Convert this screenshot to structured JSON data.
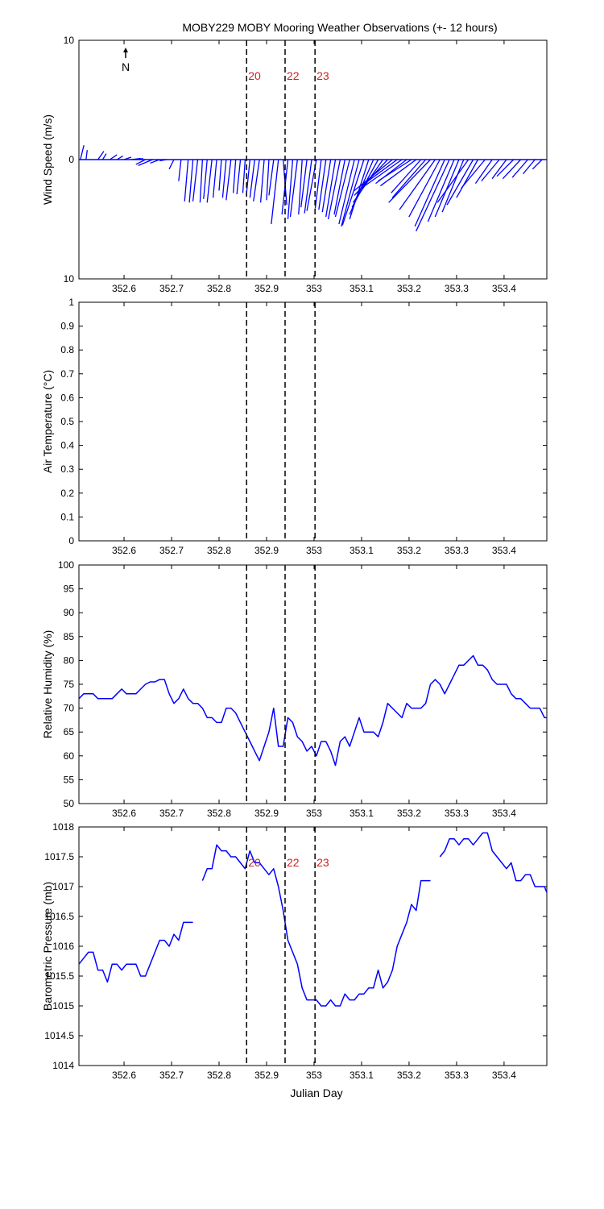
{
  "title": "MOBY229 MOBY Mooring Weather Observations (+- 12 hours)",
  "xlabel": "Julian Day",
  "north_label": "N",
  "colors": {
    "series": "#0000ff",
    "marker_text": "#cc2222",
    "axes": "#000000"
  },
  "markers": [
    {
      "x": 352.858,
      "label": "20"
    },
    {
      "x": 352.939,
      "label": "22"
    },
    {
      "x": 353.002,
      "label": "23"
    }
  ],
  "chart_data": [
    {
      "type": "wind-vector",
      "ylabel": "Wind Speed (m/s)",
      "xlim": [
        352.505,
        353.49
      ],
      "ylim": [
        -10,
        10
      ],
      "x_ticks": [
        352.6,
        352.7,
        352.8,
        352.9,
        353,
        353.1,
        353.2,
        353.3,
        353.4
      ],
      "x_tick_labels": [
        "352.6",
        "352.7",
        "352.8",
        "352.9",
        "353",
        "353.1",
        "353.2",
        "353.3",
        "353.4"
      ],
      "y_ticks": [
        10,
        0,
        -10
      ],
      "y_tick_labels": [
        "10",
        "0",
        "10"
      ],
      "grid": false,
      "show_markers": true,
      "show_marker_labels": true,
      "series": [
        {
          "name": "wind",
          "x": [
            352.508,
            352.52,
            352.545,
            352.555,
            352.57,
            352.585,
            352.6,
            352.615,
            352.63,
            352.645,
            352.66,
            352.675,
            352.69,
            352.705,
            352.72,
            352.735,
            352.745,
            352.755,
            352.765,
            352.775,
            352.785,
            352.795,
            352.805,
            352.815,
            352.825,
            352.835,
            352.845,
            352.855,
            352.865,
            352.875,
            352.885,
            352.895,
            352.905,
            352.915,
            352.925,
            352.935,
            352.945,
            352.955,
            352.965,
            352.975,
            352.985,
            352.995,
            353.005,
            353.015,
            353.025,
            353.035,
            353.045,
            353.055,
            353.065,
            353.075,
            353.085,
            353.095,
            353.105,
            353.115,
            353.125,
            353.135,
            353.145,
            353.155,
            353.165,
            353.175,
            353.185,
            353.195,
            353.205,
            353.215,
            353.225,
            353.235,
            353.245,
            353.255,
            353.265,
            353.275,
            353.285,
            353.295,
            353.305,
            353.315,
            353.325,
            353.335,
            353.345,
            353.36,
            353.375,
            353.39,
            353.405,
            353.42,
            353.435,
            353.45,
            353.465,
            353.48
          ],
          "u": [
            0.3,
            0.1,
            0.5,
            0.3,
            0.6,
            0.5,
            0.6,
            0.8,
            0.4,
            -0.8,
            -1.2,
            -0.8,
            -0.6,
            -0.4,
            -0.2,
            -0.3,
            -0.3,
            -0.4,
            -0.2,
            -0.3,
            -0.4,
            -0.3,
            -0.2,
            -0.3,
            -0.4,
            -0.2,
            -0.3,
            -0.2,
            -0.3,
            -0.4,
            -0.5,
            -0.3,
            -0.2,
            -0.4,
            -0.6,
            0.3,
            -0.5,
            -0.4,
            -0.6,
            -0.3,
            -0.5,
            -0.6,
            -0.8,
            -0.5,
            -0.6,
            -0.7,
            -0.8,
            -1.0,
            -0.9,
            -1.2,
            -1.3,
            -1.5,
            -1.8,
            -1.6,
            -2.0,
            -2.2,
            -2.5,
            -2.8,
            -3.2,
            -3.0,
            -3.4,
            -2.6,
            -2.8,
            -3.0,
            -2.5,
            -2.8,
            -3.5,
            -3.0,
            -2.6,
            -2.5,
            -2.8,
            -2.2,
            -2.0,
            -1.8,
            -2.6,
            -2.2,
            -1.8,
            -2.0,
            -1.4,
            -1.5,
            -1.2,
            -1.4,
            -1.5,
            -1.3,
            -1.0,
            -0.8
          ],
          "v": [
            1.2,
            0.8,
            0.7,
            0.5,
            0.4,
            0.3,
            0.2,
            0.1,
            0.1,
            -0.4,
            -0.5,
            -0.3,
            -0.1,
            -0.8,
            -1.8,
            -3.5,
            -3.6,
            -3.5,
            -3.6,
            -3.3,
            -3.6,
            -3.2,
            -2.6,
            -3.2,
            -3.4,
            -2.8,
            -2.9,
            -2.8,
            -3.0,
            -3.2,
            -3.5,
            -3.6,
            -3.4,
            -3.0,
            -5.4,
            -3.8,
            -4.6,
            -5.0,
            -4.8,
            -4.6,
            -4.0,
            -4.5,
            -4.3,
            -4.1,
            -4.2,
            -4.4,
            -4.8,
            -5.0,
            -4.6,
            -4.8,
            -5.4,
            -5.6,
            -5.5,
            -5.0,
            -4.6,
            -4.0,
            -3.6,
            -3.0,
            -2.6,
            -2.2,
            -2.4,
            -2.0,
            -1.8,
            -2.2,
            -2.8,
            -3.2,
            -3.6,
            -4.2,
            -4.8,
            -5.6,
            -6.0,
            -5.2,
            -4.8,
            -4.4,
            -3.6,
            -3.8,
            -3.2,
            -2.4,
            -2.0,
            -1.8,
            -1.6,
            -1.4,
            -1.6,
            -1.5,
            -1.2,
            -0.8
          ]
        }
      ]
    },
    {
      "type": "line",
      "ylabel": "Air Temperature (°C)",
      "xlim": [
        352.505,
        353.49
      ],
      "ylim": [
        0,
        1
      ],
      "x_ticks": [
        352.6,
        352.7,
        352.8,
        352.9,
        353,
        353.1,
        353.2,
        353.3,
        353.4
      ],
      "x_tick_labels": [
        "352.6",
        "352.7",
        "352.8",
        "352.9",
        "353",
        "353.1",
        "353.2",
        "353.3",
        "353.4"
      ],
      "y_ticks": [
        0,
        0.1,
        0.2,
        0.3,
        0.4,
        0.5,
        0.6,
        0.7,
        0.8,
        0.9,
        1
      ],
      "y_tick_labels": [
        "0",
        "0.1",
        "0.2",
        "0.3",
        "0.4",
        "0.5",
        "0.6",
        "0.7",
        "0.8",
        "0.9",
        "1"
      ],
      "grid": false,
      "show_markers": true,
      "show_marker_labels": false,
      "series": []
    },
    {
      "type": "line",
      "ylabel": "Relative Humidity (%)",
      "xlim": [
        352.505,
        353.49
      ],
      "ylim": [
        50,
        100
      ],
      "x_ticks": [
        352.6,
        352.7,
        352.8,
        352.9,
        353,
        353.1,
        353.2,
        353.3,
        353.4
      ],
      "x_tick_labels": [
        "352.6",
        "352.7",
        "352.8",
        "352.9",
        "353",
        "353.1",
        "353.2",
        "353.3",
        "353.4"
      ],
      "y_ticks": [
        50,
        55,
        60,
        65,
        70,
        75,
        80,
        85,
        90,
        95,
        100
      ],
      "y_tick_labels": [
        "50",
        "55",
        "60",
        "65",
        "70",
        "75",
        "80",
        "85",
        "90",
        "95",
        "100"
      ],
      "grid": false,
      "show_markers": true,
      "show_marker_labels": false,
      "series": [
        {
          "name": "RH",
          "x": [
            352.505,
            352.515,
            352.525,
            352.535,
            352.545,
            352.555,
            352.565,
            352.575,
            352.585,
            352.595,
            352.605,
            352.615,
            352.625,
            352.635,
            352.645,
            352.655,
            352.665,
            352.675,
            352.685,
            352.695,
            352.705,
            352.715,
            352.725,
            352.735,
            352.745,
            352.755,
            352.765,
            352.775,
            352.785,
            352.795,
            352.805,
            352.815,
            352.825,
            352.835,
            352.845,
            352.855,
            352.865,
            352.875,
            352.885,
            352.895,
            352.905,
            352.915,
            352.925,
            352.935,
            352.945,
            352.955,
            352.965,
            352.975,
            352.985,
            352.995,
            353.005,
            353.015,
            353.025,
            353.035,
            353.045,
            353.055,
            353.065,
            353.075,
            353.085,
            353.095,
            353.105,
            353.115,
            353.125,
            353.135,
            353.145,
            353.155,
            353.165,
            353.175,
            353.185,
            353.195,
            353.205,
            353.215,
            353.225,
            353.235,
            353.245,
            353.255,
            353.265,
            353.275,
            353.285,
            353.295,
            353.305,
            353.315,
            353.325,
            353.335,
            353.345,
            353.355,
            353.365,
            353.375,
            353.385,
            353.395,
            353.405,
            353.415,
            353.425,
            353.435,
            353.445,
            353.455,
            353.465,
            353.475,
            353.485,
            353.49
          ],
          "y": [
            72,
            73,
            73,
            73,
            72,
            72,
            72,
            72,
            73,
            74,
            73,
            73,
            73,
            74,
            75,
            75.5,
            75.5,
            76,
            76,
            73,
            71,
            72,
            74,
            72,
            71,
            71,
            70,
            68,
            68,
            67,
            67,
            70,
            70,
            69,
            67,
            65,
            63,
            61,
            59,
            62,
            65,
            70,
            62,
            62,
            68,
            67,
            64,
            63,
            61,
            62,
            60,
            63,
            63,
            61,
            58,
            63,
            64,
            62,
            65,
            68,
            65,
            65,
            65,
            64,
            67,
            71,
            70,
            69,
            68,
            71,
            70,
            70,
            70,
            71,
            75,
            76,
            75,
            73,
            75,
            77,
            79,
            79,
            80,
            81,
            79,
            79,
            78,
            76,
            75,
            75,
            75,
            73,
            72,
            72,
            71,
            70,
            70,
            70,
            68,
            68
          ]
        }
      ]
    },
    {
      "type": "line",
      "ylabel": "Barometric Pressure (mb)",
      "xlim": [
        352.505,
        353.49
      ],
      "ylim": [
        1014,
        1018
      ],
      "x_ticks": [
        352.6,
        352.7,
        352.8,
        352.9,
        353,
        353.1,
        353.2,
        353.3,
        353.4
      ],
      "x_tick_labels": [
        "352.6",
        "352.7",
        "352.8",
        "352.9",
        "353",
        "353.1",
        "353.2",
        "353.3",
        "353.4"
      ],
      "y_ticks": [
        1014,
        1014.5,
        1015,
        1015.5,
        1016,
        1016.5,
        1017,
        1017.5,
        1018
      ],
      "y_tick_labels": [
        "1014",
        "1014.5",
        "1015",
        "1015.5",
        "1016",
        "1016.5",
        "1017",
        "1017.5",
        "1018"
      ],
      "grid": false,
      "show_markers": true,
      "show_marker_labels": true,
      "series": [
        {
          "name": "pressure",
          "segments": [
            {
              "x": [
                352.505,
                352.515,
                352.525,
                352.535,
                352.545,
                352.555,
                352.565,
                352.575,
                352.585,
                352.595,
                352.605,
                352.615,
                352.625,
                352.635,
                352.645,
                352.655,
                352.665,
                352.675,
                352.685,
                352.695,
                352.705,
                352.715,
                352.725,
                352.735,
                352.745
              ],
              "y": [
                1015.7,
                1015.8,
                1015.9,
                1015.9,
                1015.6,
                1015.6,
                1015.4,
                1015.7,
                1015.7,
                1015.6,
                1015.7,
                1015.7,
                1015.7,
                1015.5,
                1015.5,
                1015.7,
                1015.9,
                1016.1,
                1016.1,
                1016.0,
                1016.2,
                1016.1,
                1016.4,
                1016.4,
                1016.4
              ]
            },
            {
              "x": [
                352.765,
                352.775,
                352.785,
                352.795,
                352.805,
                352.815,
                352.825,
                352.835,
                352.845,
                352.855,
                352.865,
                352.875,
                352.885,
                352.895,
                352.905,
                352.915,
                352.925,
                352.935,
                352.945,
                352.955,
                352.965,
                352.975,
                352.985,
                352.995,
                353.005,
                353.015,
                353.025,
                353.035,
                353.045,
                353.055,
                353.065,
                353.075,
                353.085,
                353.095,
                353.105,
                353.115,
                353.125,
                353.135,
                353.145,
                353.155,
                353.165,
                353.175,
                353.185,
                353.195,
                353.205,
                353.215,
                353.225,
                353.235,
                353.245
              ],
              "y": [
                1017.1,
                1017.3,
                1017.3,
                1017.7,
                1017.6,
                1017.6,
                1017.5,
                1017.5,
                1017.4,
                1017.3,
                1017.6,
                1017.4,
                1017.4,
                1017.3,
                1017.2,
                1017.3,
                1017.0,
                1016.6,
                1016.1,
                1015.9,
                1015.7,
                1015.3,
                1015.1,
                1015.1,
                1015.1,
                1015.0,
                1015.0,
                1015.1,
                1015.0,
                1015.0,
                1015.2,
                1015.1,
                1015.1,
                1015.2,
                1015.2,
                1015.3,
                1015.3,
                1015.6,
                1015.3,
                1015.4,
                1015.6,
                1016.0,
                1016.2,
                1016.4,
                1016.7,
                1016.6,
                1017.1,
                1017.1,
                1017.1
              ]
            },
            {
              "x": [
                353.265,
                353.275,
                353.285,
                353.295,
                353.305,
                353.315,
                353.325,
                353.335,
                353.345,
                353.355,
                353.365,
                353.375,
                353.385,
                353.395,
                353.405,
                353.415,
                353.425,
                353.435,
                353.445,
                353.455,
                353.465,
                353.475,
                353.485,
                353.49
              ],
              "y": [
                1017.5,
                1017.6,
                1017.8,
                1017.8,
                1017.7,
                1017.8,
                1017.8,
                1017.7,
                1017.8,
                1017.9,
                1017.9,
                1017.6,
                1017.5,
                1017.4,
                1017.3,
                1017.4,
                1017.1,
                1017.1,
                1017.2,
                1017.2,
                1017.0,
                1017.0,
                1017.0,
                1016.9
              ]
            }
          ]
        }
      ]
    }
  ]
}
